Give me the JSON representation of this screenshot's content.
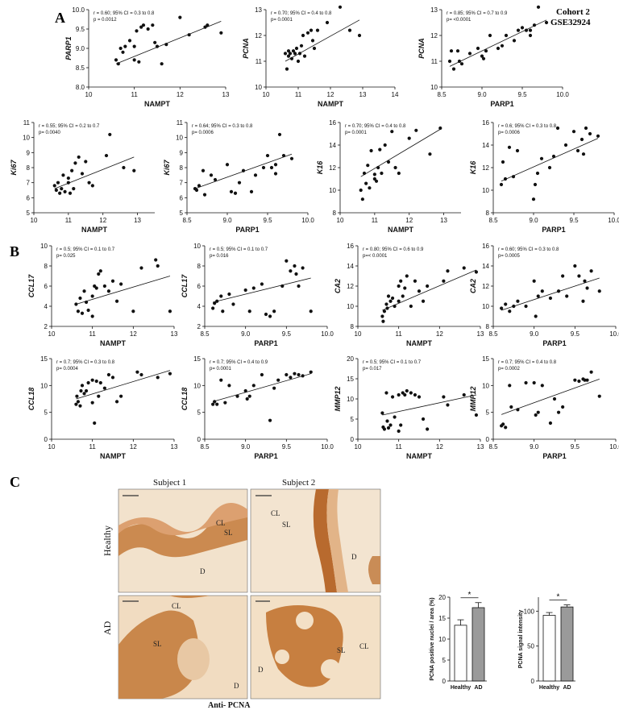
{
  "panels": {
    "a": "A",
    "b": "B",
    "c": "C"
  },
  "cohort_line1": "Cohort 2",
  "cohort_line2": "GSE32924",
  "histology": {
    "subject1": "Subject  1",
    "subject2": "Subject  2",
    "healthy": "Healthy",
    "ad": "AD",
    "antibody": "Anti- PCNA",
    "labels": {
      "cl": "CL",
      "sl": "SL",
      "d": "D"
    },
    "stain_color": "#b5651d",
    "background_color": "#f1dcc1"
  },
  "colors": {
    "point": "#111111",
    "healthy_bar": "#ffffff",
    "ad_bar": "#9a9a9a"
  },
  "chart_data": [
    {
      "type": "scatter",
      "ylabel": "PARP1",
      "xlabel": "NAMPT",
      "stat1": "r = 0.60; 95% CI = 0.3 to 0.8",
      "stat2": "p = 0.0012",
      "xlim": [
        10,
        13
      ],
      "xticks": [
        10,
        11,
        12,
        13
      ],
      "ylim": [
        8.0,
        10.0
      ],
      "yticks": [
        8.0,
        8.5,
        9.0,
        9.5,
        10.0
      ],
      "yfmt": 1,
      "fit": [
        8.6,
        9.7
      ],
      "x": [
        10.6,
        10.65,
        10.7,
        10.75,
        10.8,
        10.9,
        11.0,
        11.0,
        11.05,
        11.1,
        11.15,
        11.2,
        11.3,
        11.4,
        11.45,
        11.5,
        11.6,
        11.7,
        12.0,
        12.2,
        12.55,
        12.6,
        12.9
      ],
      "y": [
        8.7,
        8.6,
        9.0,
        8.9,
        9.05,
        9.2,
        8.7,
        9.05,
        9.45,
        8.65,
        9.55,
        9.6,
        9.5,
        9.6,
        9.15,
        9.05,
        8.6,
        9.1,
        9.8,
        9.35,
        9.55,
        9.6,
        9.4
      ]
    },
    {
      "type": "scatter",
      "ylabel": "PCNA",
      "xlabel": "NAMPT",
      "stat1": "r = 0.70; 95% CI = 0.4 to 0.8",
      "stat2": "p= 0.0001",
      "xlim": [
        10,
        14
      ],
      "xticks": [
        10,
        11,
        12,
        13,
        14
      ],
      "ylim": [
        10,
        13
      ],
      "yticks": [
        10,
        11,
        12,
        13
      ],
      "yfmt": 0,
      "fit": [
        11.0,
        12.6
      ],
      "x": [
        10.6,
        10.65,
        10.7,
        10.7,
        10.75,
        10.8,
        10.85,
        10.9,
        10.95,
        11.0,
        11.05,
        11.1,
        11.15,
        11.2,
        11.3,
        11.4,
        11.45,
        11.5,
        11.6,
        11.9,
        12.3,
        12.6,
        12.9
      ],
      "y": [
        11.3,
        10.7,
        11.4,
        11.2,
        11.3,
        11.1,
        11.4,
        11.3,
        11.5,
        11.0,
        11.3,
        11.6,
        12.0,
        11.2,
        12.1,
        12.2,
        11.8,
        11.5,
        12.2,
        12.5,
        13.1,
        12.2,
        12.0
      ]
    },
    {
      "type": "scatter",
      "ylabel": "PCNA",
      "xlabel": "PARP1",
      "stat1": "r = 0.85; 95% CI = 0.7 to 0.9",
      "stat2": "p= <0.0001",
      "xlim": [
        8.5,
        10.0
      ],
      "xticks": [
        8.5,
        9.0,
        9.5,
        10.0
      ],
      "ylim": [
        10,
        13
      ],
      "yticks": [
        10,
        11,
        12,
        13
      ],
      "yfmt": 0,
      "fit": [
        10.8,
        12.6
      ],
      "x": [
        8.6,
        8.62,
        8.65,
        8.7,
        8.72,
        8.75,
        8.85,
        8.95,
        9.0,
        9.02,
        9.05,
        9.1,
        9.2,
        9.25,
        9.3,
        9.4,
        9.45,
        9.5,
        9.55,
        9.6,
        9.6,
        9.65,
        9.7,
        9.8
      ],
      "y": [
        11.0,
        11.4,
        10.7,
        11.4,
        11.0,
        10.9,
        11.3,
        11.5,
        11.2,
        11.1,
        11.4,
        12.0,
        11.5,
        11.6,
        12.0,
        11.8,
        12.2,
        12.3,
        12.2,
        12.0,
        12.2,
        12.4,
        13.1,
        12.5
      ]
    },
    {
      "type": "scatter",
      "ylabel": "Ki67",
      "xlabel": "NAMPT",
      "stat1": "r = 0.55; 95% CI = 0.2 to 0.7",
      "stat2": "p= 0.0040",
      "xlim": [
        10,
        14
      ],
      "xticks": [
        10,
        11,
        12,
        13
      ],
      "xlim_real": [
        10,
        13.5
      ],
      "ylim": [
        5,
        11
      ],
      "yticks": [
        5,
        6,
        7,
        8,
        9,
        10,
        11
      ],
      "yfmt": 0,
      "fit": [
        6.6,
        8.7
      ],
      "x": [
        10.6,
        10.65,
        10.7,
        10.75,
        10.8,
        10.85,
        10.9,
        11.0,
        11.0,
        11.05,
        11.1,
        11.15,
        11.2,
        11.3,
        11.4,
        11.5,
        11.6,
        11.7,
        12.1,
        12.2,
        12.6,
        12.9
      ],
      "y": [
        6.8,
        6.5,
        7.0,
        6.3,
        6.6,
        7.5,
        6.4,
        7.3,
        7.0,
        6.3,
        7.8,
        6.6,
        8.3,
        8.7,
        7.6,
        8.4,
        7.0,
        6.8,
        8.8,
        10.2,
        8.0,
        7.8
      ]
    },
    {
      "type": "scatter",
      "ylabel": "Ki67",
      "xlabel": "PARP1",
      "stat1": "r = 0.64; 95% CI = 0.3 to 0.8",
      "stat2": "p= 0.0006",
      "xlim": [
        8.5,
        10.0
      ],
      "xticks": [
        8.5,
        9.0,
        9.5,
        10.0
      ],
      "ylim": [
        5,
        11
      ],
      "yticks": [
        5,
        6,
        7,
        8,
        9,
        10,
        11
      ],
      "yfmt": 0,
      "fit": [
        6.6,
        8.9
      ],
      "x": [
        8.6,
        8.62,
        8.65,
        8.7,
        8.72,
        8.8,
        8.85,
        9.0,
        9.05,
        9.1,
        9.15,
        9.2,
        9.3,
        9.35,
        9.45,
        9.5,
        9.55,
        9.6,
        9.6,
        9.65,
        9.7,
        9.8
      ],
      "y": [
        6.6,
        6.5,
        6.8,
        7.8,
        6.2,
        7.5,
        7.2,
        8.2,
        6.4,
        6.3,
        7.0,
        7.8,
        6.4,
        7.5,
        8.0,
        8.8,
        8.0,
        7.6,
        8.2,
        10.2,
        8.8,
        8.6
      ]
    },
    {
      "type": "scatter",
      "ylabel": "K16",
      "xlabel": "NAMPT",
      "stat1": "r = 0.70; 95% CI = 0.4 to 0.8",
      "stat2": "p= 0.0001",
      "xlim": [
        10,
        14
      ],
      "xticks": [
        10,
        11,
        12,
        13
      ],
      "xlim_real": [
        10,
        13.5
      ],
      "ylim": [
        8,
        16
      ],
      "yticks": [
        8,
        10,
        12,
        14,
        16
      ],
      "yfmt": 0,
      "fit": [
        11.2,
        15.4
      ],
      "x": [
        10.6,
        10.65,
        10.7,
        10.75,
        10.8,
        10.85,
        10.9,
        11.0,
        11.0,
        11.05,
        11.1,
        11.15,
        11.2,
        11.3,
        11.4,
        11.5,
        11.6,
        11.7,
        12.0,
        12.2,
        12.6,
        12.9
      ],
      "y": [
        10.0,
        9.2,
        11.5,
        10.6,
        12.2,
        10.2,
        13.5,
        11.4,
        11.0,
        10.8,
        12.0,
        13.6,
        11.5,
        14.0,
        12.5,
        15.2,
        12.0,
        11.5,
        14.6,
        15.3,
        13.2,
        15.5
      ]
    },
    {
      "type": "scatter",
      "ylabel": "K16",
      "xlabel": "PARP1",
      "stat1": "r = 0.6; 95% CI = 0.3 to 0.8",
      "stat2": "p= 0.0006",
      "xlim": [
        8.5,
        10.0
      ],
      "xticks": [
        8.5,
        9.0,
        9.5,
        10.0
      ],
      "ylim": [
        8,
        16
      ],
      "yticks": [
        8,
        10,
        12,
        14,
        16
      ],
      "yfmt": 0,
      "fit": [
        10.8,
        14.6
      ],
      "x": [
        8.6,
        8.62,
        8.65,
        8.7,
        8.75,
        8.8,
        9.0,
        9.02,
        9.05,
        9.1,
        9.2,
        9.25,
        9.3,
        9.4,
        9.5,
        9.55,
        9.6,
        9.62,
        9.65,
        9.7,
        9.8
      ],
      "y": [
        10.5,
        12.5,
        11.0,
        13.8,
        11.2,
        13.5,
        9.2,
        10.5,
        11.5,
        12.8,
        12.0,
        13.0,
        15.5,
        14.0,
        15.2,
        13.5,
        14.5,
        13.2,
        15.5,
        15.0,
        14.8
      ]
    },
    {
      "type": "scatter",
      "ylabel": "CCL17",
      "xlabel": "NAMPT",
      "stat1": "r = 0.5; 95% CI = 0.1 to 0.7",
      "stat2": "p= 0.025",
      "xlim": [
        10,
        13
      ],
      "xticks": [
        10,
        11,
        12,
        13
      ],
      "ylim": [
        2,
        10
      ],
      "yticks": [
        2,
        4,
        6,
        8,
        10
      ],
      "yfmt": 0,
      "fit": [
        4.2,
        7.0
      ],
      "x": [
        10.6,
        10.65,
        10.7,
        10.75,
        10.8,
        10.85,
        10.9,
        11.0,
        11.0,
        11.05,
        11.1,
        11.15,
        11.2,
        11.3,
        11.4,
        11.5,
        11.6,
        11.7,
        12.0,
        12.2,
        12.55,
        12.6,
        12.9
      ],
      "y": [
        4.2,
        3.5,
        4.8,
        3.3,
        5.5,
        4.4,
        3.6,
        5.0,
        3.0,
        6.0,
        5.8,
        7.2,
        7.5,
        6.0,
        5.5,
        6.5,
        4.5,
        6.2,
        3.5,
        7.8,
        8.6,
        8.0,
        3.5
      ]
    },
    {
      "type": "scatter",
      "ylabel": "CCL17",
      "xlabel": "PARP1",
      "stat1": "r = 0.5; 95% CI = 0.1 to 0.7",
      "stat2": "p= 0.016",
      "xlim": [
        8.5,
        10.0
      ],
      "xticks": [
        8.5,
        9.0,
        9.5,
        10.0
      ],
      "ylim": [
        2,
        10
      ],
      "yticks": [
        2,
        4,
        6,
        8,
        10
      ],
      "yfmt": 0,
      "fit": [
        4.4,
        6.8
      ],
      "x": [
        8.6,
        8.62,
        8.65,
        8.7,
        8.72,
        8.8,
        8.85,
        9.0,
        9.05,
        9.1,
        9.2,
        9.25,
        9.3,
        9.35,
        9.45,
        9.5,
        9.55,
        9.6,
        9.62,
        9.65,
        9.7,
        9.8
      ],
      "y": [
        3.8,
        4.3,
        4.5,
        5.0,
        3.5,
        5.2,
        4.2,
        5.6,
        3.5,
        5.8,
        6.2,
        3.2,
        3.0,
        3.5,
        6.0,
        8.5,
        7.5,
        8.0,
        7.2,
        6.0,
        7.8,
        3.5
      ]
    },
    {
      "type": "scatter",
      "ylabel": "CA2",
      "xlabel": "NAMPT",
      "stat1": "r = 0.80; 95% CI = 0.6 to 0.9",
      "stat2": "p=< 0.0001",
      "xlim": [
        10,
        13
      ],
      "xticks": [
        10,
        11,
        12,
        13
      ],
      "ylim": [
        8,
        16
      ],
      "yticks": [
        8,
        10,
        12,
        14,
        16
      ],
      "yfmt": 0,
      "fit": [
        9.6,
        13.6
      ],
      "x": [
        10.6,
        10.62,
        10.65,
        10.7,
        10.72,
        10.75,
        10.8,
        10.85,
        10.9,
        11.0,
        11.0,
        11.05,
        11.1,
        11.15,
        11.2,
        11.3,
        11.4,
        11.5,
        11.6,
        11.7,
        12.1,
        12.2,
        12.6,
        12.9
      ],
      "y": [
        9.0,
        8.5,
        9.5,
        10.2,
        9.8,
        11.0,
        10.5,
        10.8,
        10.0,
        12.0,
        10.5,
        12.5,
        11.0,
        11.8,
        13.0,
        10.0,
        12.5,
        11.5,
        10.5,
        12.0,
        12.5,
        13.5,
        13.8,
        13.4
      ]
    },
    {
      "type": "scatter",
      "ylabel": "CA2",
      "xlabel": "PARP1",
      "stat1": "r = 0.60; 95% CI = 0.3 to 0.8",
      "stat2": "p= 0.0005",
      "xlim": [
        8.5,
        10.0
      ],
      "xticks": [
        8.5,
        9.0,
        9.5,
        10.0
      ],
      "ylim": [
        8,
        16
      ],
      "yticks": [
        8,
        10,
        12,
        14,
        16
      ],
      "yfmt": 0,
      "fit": [
        9.6,
        12.8
      ],
      "x": [
        8.6,
        8.65,
        8.7,
        8.75,
        8.8,
        8.9,
        9.0,
        9.02,
        9.05,
        9.1,
        9.2,
        9.3,
        9.35,
        9.4,
        9.5,
        9.55,
        9.6,
        9.62,
        9.65,
        9.7,
        9.8
      ],
      "y": [
        9.8,
        10.2,
        9.5,
        10.0,
        10.5,
        10.0,
        12.5,
        9.0,
        11.0,
        11.5,
        10.8,
        11.5,
        13.0,
        11.0,
        14.0,
        13.0,
        10.5,
        12.5,
        11.8,
        13.5,
        11.5
      ]
    },
    {
      "type": "scatter",
      "ylabel": "CCL18",
      "xlabel": "NAMPT",
      "stat1": "r = 0.7; 95% CI = 0.3 to 0.8",
      "stat2": "p= 0.0004",
      "xlim": [
        10,
        13
      ],
      "xticks": [
        10,
        11,
        12,
        13
      ],
      "ylim": [
        0,
        15
      ],
      "yticks": [
        0,
        5,
        10,
        15
      ],
      "yfmt": 0,
      "fit": [
        7.5,
        12.8
      ],
      "x": [
        10.6,
        10.62,
        10.65,
        10.7,
        10.72,
        10.75,
        10.8,
        10.85,
        10.9,
        11.0,
        11.0,
        11.05,
        11.1,
        11.15,
        11.2,
        11.3,
        11.4,
        11.5,
        11.6,
        11.7,
        12.1,
        12.2,
        12.6,
        12.9
      ],
      "y": [
        6.5,
        8.0,
        7.0,
        6.2,
        9.0,
        10.0,
        8.5,
        9.0,
        10.5,
        11.0,
        6.8,
        3.0,
        10.8,
        8.0,
        10.5,
        9.5,
        12.0,
        11.5,
        7.0,
        8.0,
        12.5,
        12.0,
        11.5,
        12.2
      ]
    },
    {
      "type": "scatter",
      "ylabel": "CCL18",
      "xlabel": "PARP1",
      "stat1": "r = 0.7; 95% CI = 0.4 to 0.9",
      "stat2": "p= 0.0001",
      "xlim": [
        8.5,
        10.0
      ],
      "xticks": [
        8.5,
        9.0,
        9.5,
        10.0
      ],
      "ylim": [
        0,
        15
      ],
      "yticks": [
        0,
        5,
        10,
        15
      ],
      "yfmt": 0,
      "fit": [
        7.0,
        12.2
      ],
      "x": [
        8.6,
        8.62,
        8.65,
        8.7,
        8.75,
        8.8,
        8.9,
        9.0,
        9.02,
        9.05,
        9.1,
        9.2,
        9.3,
        9.35,
        9.4,
        9.5,
        9.55,
        9.6,
        9.65,
        9.7,
        9.8
      ],
      "y": [
        6.5,
        7.0,
        6.5,
        11.0,
        6.8,
        10.0,
        8.0,
        9.0,
        7.5,
        8.0,
        10.0,
        12.0,
        3.5,
        9.5,
        11.0,
        12.0,
        11.5,
        12.2,
        12.0,
        11.8,
        12.5
      ]
    },
    {
      "type": "scatter",
      "ylabel": "MMP12",
      "xlabel": "NAMPT",
      "stat1": "r = 0.5; 95% CI = 0.1 to 0.7",
      "stat2": "p= 0.017",
      "xlim": [
        10,
        13
      ],
      "xticks": [
        10,
        11,
        12,
        13
      ],
      "ylim": [
        0,
        20
      ],
      "yticks": [
        0,
        5,
        10,
        15,
        20
      ],
      "yfmt": 0,
      "fit": [
        6.0,
        11.0
      ],
      "x": [
        10.6,
        10.62,
        10.65,
        10.7,
        10.72,
        10.75,
        10.8,
        10.85,
        10.9,
        11.0,
        11.0,
        11.05,
        11.1,
        11.15,
        11.2,
        11.3,
        11.4,
        11.5,
        11.6,
        11.7,
        12.1,
        12.2,
        12.6,
        12.9
      ],
      "y": [
        6.5,
        3.0,
        2.5,
        11.5,
        4.5,
        2.8,
        3.5,
        10.5,
        5.5,
        11.0,
        2.0,
        3.5,
        11.5,
        11.0,
        12.0,
        11.5,
        11.0,
        10.5,
        5.0,
        2.5,
        10.5,
        8.5,
        11.0,
        6.0
      ]
    },
    {
      "type": "scatter",
      "ylabel": "MMP12",
      "xlabel": "PARP1",
      "stat1": "r = 0.7; 95% CI = 0.4 to 0.8",
      "stat2": "p= 0.0002",
      "xlim": [
        8.5,
        10.0
      ],
      "xticks": [
        8.5,
        9.0,
        9.5,
        10.0
      ],
      "ylim": [
        0,
        15
      ],
      "yticks": [
        0,
        5,
        10,
        15
      ],
      "yfmt": 0,
      "fit": [
        4.6,
        11.2
      ],
      "x": [
        8.6,
        8.62,
        8.65,
        8.7,
        8.72,
        8.8,
        8.9,
        9.0,
        9.02,
        9.05,
        9.1,
        9.2,
        9.25,
        9.3,
        9.35,
        9.5,
        9.55,
        9.6,
        9.62,
        9.65,
        9.7,
        9.8
      ],
      "y": [
        2.5,
        2.8,
        2.2,
        10.0,
        6.0,
        5.5,
        10.5,
        10.5,
        4.5,
        5.0,
        10.0,
        3.0,
        7.5,
        5.0,
        6.0,
        11.0,
        10.8,
        11.2,
        11.0,
        11.0,
        12.5,
        8.0
      ]
    },
    {
      "type": "bar",
      "ylabel": "PCNA positive nuclei / area (%)",
      "categories": [
        "Healthy",
        "AD"
      ],
      "values": [
        13.3,
        17.5
      ],
      "errors": [
        1.3,
        1.2
      ],
      "ylim": [
        0,
        20
      ],
      "yticks": [
        0,
        5,
        10,
        15,
        20
      ],
      "significance": "*"
    },
    {
      "type": "bar",
      "ylabel": "PCNA signal intensity",
      "categories": [
        "Healthy",
        "AD"
      ],
      "values": [
        94,
        106
      ],
      "errors": [
        4,
        3
      ],
      "ylim": [
        0,
        120
      ],
      "yticks": [
        0,
        50,
        100
      ],
      "significance": "*"
    }
  ]
}
